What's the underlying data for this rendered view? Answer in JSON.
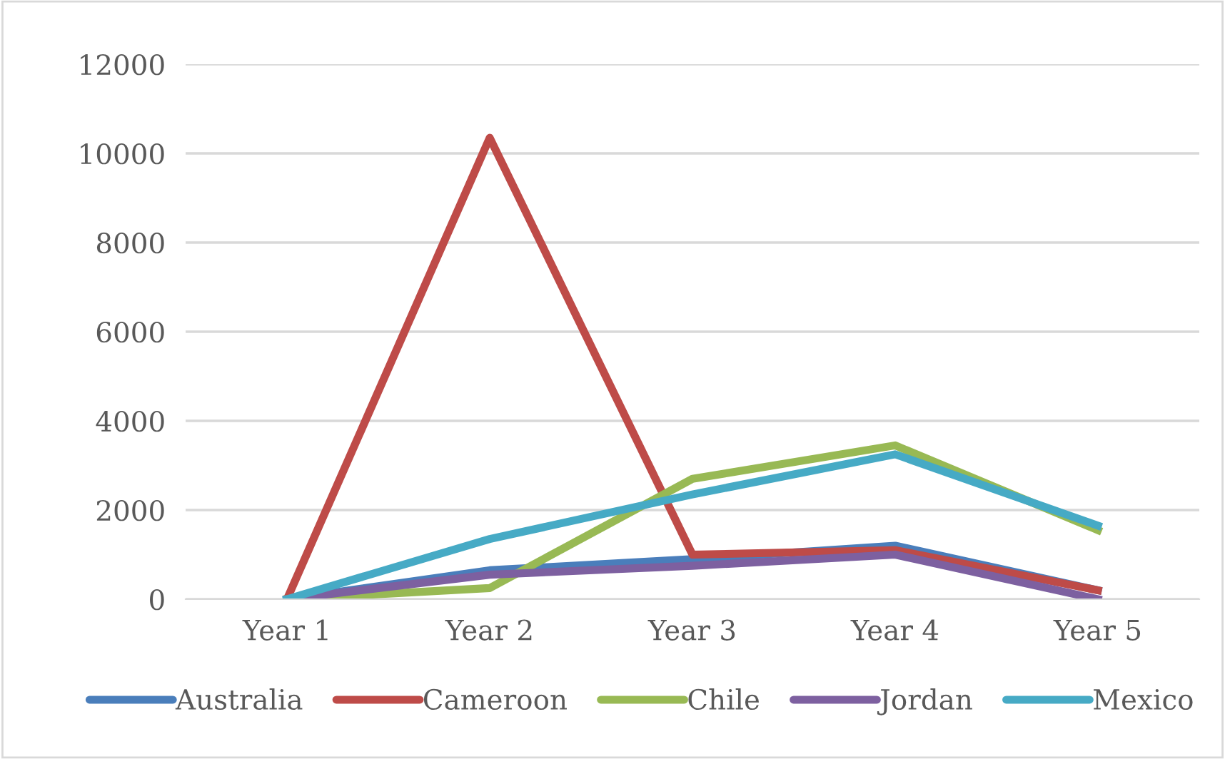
{
  "chart_data": {
    "type": "line",
    "categories": [
      "Year 1",
      "Year 2",
      "Year 3",
      "Year 4",
      "Year 5"
    ],
    "series": [
      {
        "name": "Australia",
        "color": "#4a7ebb",
        "values": [
          0,
          650,
          900,
          1200,
          200
        ]
      },
      {
        "name": "Cameroon",
        "color": "#be4b48",
        "values": [
          0,
          10350,
          1000,
          1100,
          200
        ]
      },
      {
        "name": "Chile",
        "color": "#98b954",
        "values": [
          0,
          250,
          2700,
          3450,
          1550
        ]
      },
      {
        "name": "Jordan",
        "color": "#7d60a0",
        "values": [
          0,
          550,
          750,
          1000,
          0
        ]
      },
      {
        "name": "Mexico",
        "color": "#46aac5",
        "values": [
          0,
          1350,
          2350,
          3250,
          1650
        ]
      }
    ],
    "ylim": [
      0,
      12000
    ],
    "yticks": [
      0,
      2000,
      4000,
      6000,
      8000,
      10000,
      12000
    ],
    "grid": "y",
    "legend": "bottom",
    "marker": "none",
    "line_style": "solid"
  }
}
